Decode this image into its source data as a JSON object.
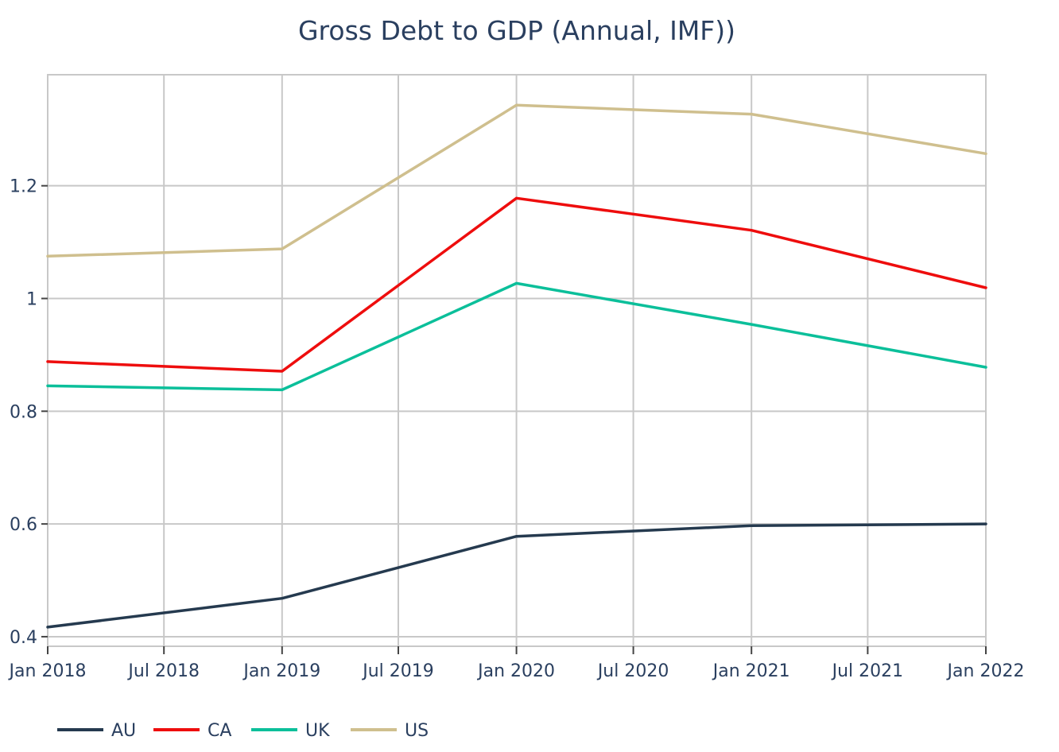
{
  "chart_data": {
    "type": "line",
    "title": "Gross Debt to GDP (Annual, IMF))",
    "xlabel": "",
    "ylabel": "",
    "x": [
      "2018-01-01",
      "2019-01-01",
      "2020-01-01",
      "2021-01-01",
      "2022-01-01"
    ],
    "x_tick_labels": [
      "Jan 2018",
      "Jul 2018",
      "Jan 2019",
      "Jul 2019",
      "Jan 2020",
      "Jul 2020",
      "Jan 2021",
      "Jul 2021",
      "Jan 2022"
    ],
    "y_tick_labels": [
      "0.4",
      "0.6",
      "0.8",
      "1",
      "1.2"
    ],
    "y_ticks": [
      0.4,
      0.6,
      0.8,
      1.0,
      1.2
    ],
    "ylim": [
      0.383,
      1.397
    ],
    "grid": true,
    "legend_placement": "bottom-left, horizontal",
    "series": [
      {
        "name": "AU",
        "color": "#253a4f",
        "values": [
          0.417,
          0.468,
          0.578,
          0.597,
          0.6
        ]
      },
      {
        "name": "CA",
        "color": "#ee0d0d",
        "values": [
          0.888,
          0.871,
          1.178,
          1.121,
          1.019
        ]
      },
      {
        "name": "UK",
        "color": "#0bbf9a",
        "values": [
          0.845,
          0.838,
          1.027,
          0.954,
          0.878
        ]
      },
      {
        "name": "US",
        "color": "#cfbf8e",
        "values": [
          1.075,
          1.088,
          1.343,
          1.327,
          1.257
        ]
      }
    ]
  }
}
